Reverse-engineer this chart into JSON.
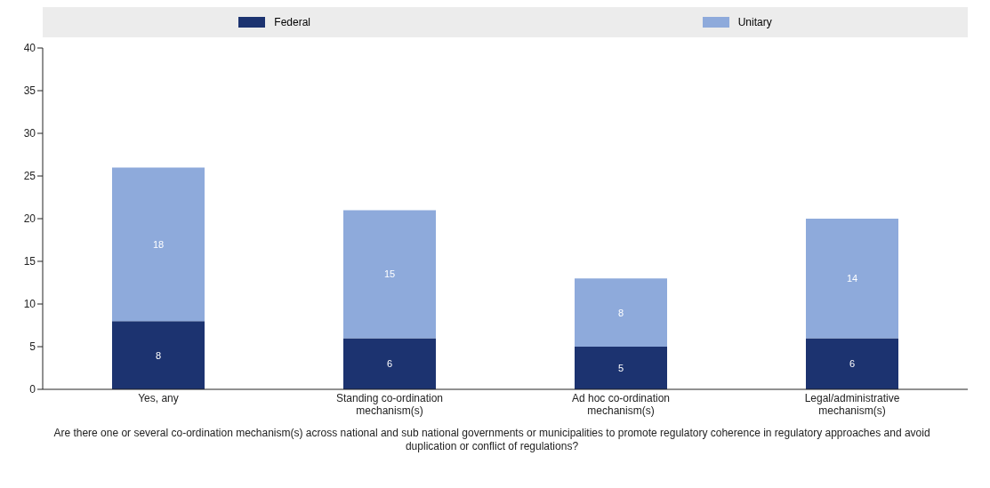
{
  "chart_data": {
    "type": "bar",
    "stacked": true,
    "categories": [
      "Yes, any",
      "Standing co-ordination mechanism(s)",
      "Ad hoc co-ordination mechanism(s)",
      "Legal/administrative mechanism(s)"
    ],
    "series": [
      {
        "name": "Federal",
        "color": "#1c3370",
        "values": [
          8,
          6,
          5,
          6
        ]
      },
      {
        "name": "Unitary",
        "color": "#8eaadb",
        "values": [
          18,
          15,
          8,
          14
        ]
      }
    ],
    "ylim": [
      0,
      40
    ],
    "yticks": [
      0,
      5,
      10,
      15,
      20,
      25,
      30,
      35,
      40
    ],
    "xlabel": "Are there one or several co-ordination mechanism(s) across national and sub national governments or municipalities to promote regulatory coherence in regulatory approaches and avoid duplication or conflict of regulations?",
    "data_labels": true,
    "legend": "top",
    "grid": false
  }
}
